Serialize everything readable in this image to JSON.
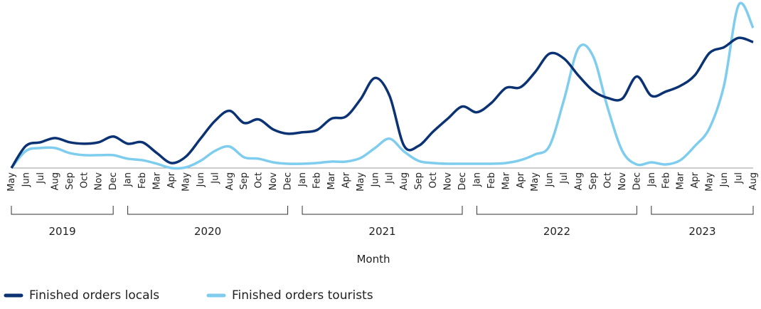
{
  "chart_data": {
    "type": "line",
    "xlabel": "Month",
    "groups": [
      {
        "label": "2019",
        "categories": [
          "May",
          "Jun",
          "Jul",
          "Aug",
          "Sep",
          "Oct",
          "Nov",
          "Dec"
        ]
      },
      {
        "label": "2020",
        "categories": [
          "Jan",
          "Feb",
          "Mar",
          "Apr",
          "May",
          "Jun",
          "Jul",
          "Aug",
          "Sep",
          "Oct",
          "Nov",
          "Dec"
        ]
      },
      {
        "label": "2021",
        "categories": [
          "Jan",
          "Feb",
          "Mar",
          "Apr",
          "May",
          "Jun",
          "Jul",
          "Aug",
          "Sep",
          "Oct",
          "Nov",
          "Dec"
        ]
      },
      {
        "label": "2022",
        "categories": [
          "Jan",
          "Feb",
          "Mar",
          "Apr",
          "May",
          "Jun",
          "Jul",
          "Aug",
          "Sep",
          "Oct",
          "Nov",
          "Dec"
        ]
      },
      {
        "label": "2023",
        "categories": [
          "Jan",
          "Feb",
          "Mar",
          "Apr",
          "May",
          "Jun",
          "Jul",
          "Aug"
        ]
      }
    ],
    "series": [
      {
        "name": "Finished orders locals",
        "color": "#0b3272",
        "values": [
          0,
          31,
          36,
          42,
          36,
          34,
          36,
          44,
          34,
          36,
          21,
          7,
          16,
          41,
          66,
          80,
          63,
          68,
          54,
          48,
          50,
          53,
          69,
          72,
          96,
          126,
          101,
          31,
          31,
          51,
          69,
          86,
          78,
          91,
          112,
          113,
          134,
          160,
          153,
          129,
          108,
          98,
          97,
          128,
          101,
          107,
          115,
          130,
          161,
          169,
          182,
          176
        ]
      },
      {
        "name": "Finished orders tourists",
        "color": "#7fcdee",
        "values": [
          0,
          24,
          28,
          28,
          21,
          18,
          18,
          18,
          13,
          11,
          6,
          0,
          1,
          10,
          24,
          30,
          15,
          13,
          8,
          6,
          6,
          7,
          9,
          9,
          14,
          28,
          41,
          23,
          10,
          7,
          6,
          6,
          6,
          6,
          7,
          11,
          19,
          31,
          96,
          168,
          156,
          84,
          24,
          5,
          8,
          5,
          11,
          31,
          56,
          116,
          228,
          196
        ]
      }
    ],
    "ylim": [
      0,
      230
    ]
  }
}
